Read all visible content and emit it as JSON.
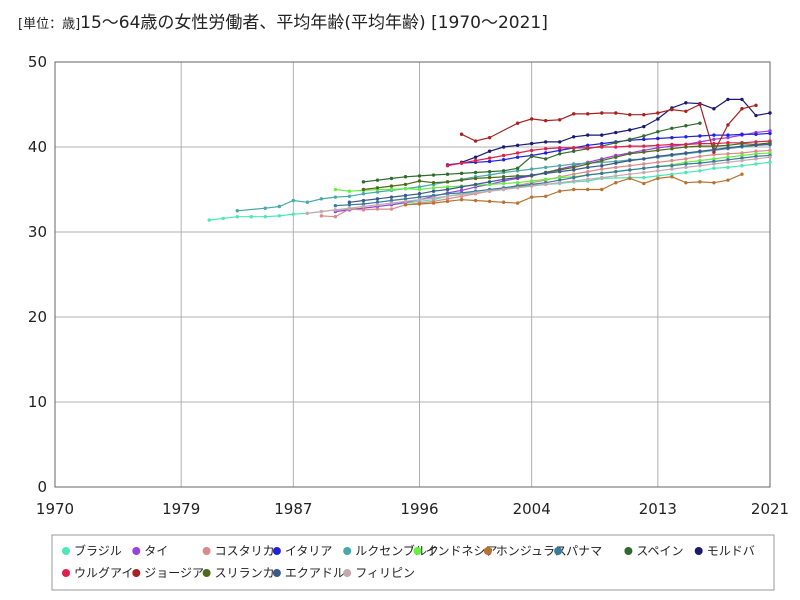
{
  "chart_data": {
    "type": "line",
    "title": "15〜64歳の女性労働者、平均年齢(平均年齢) [1970〜2021]",
    "unit_label": "[単位：歳]",
    "xlabel": "",
    "ylabel": "",
    "xlim": [
      1970,
      2021
    ],
    "ylim": [
      0,
      50
    ],
    "x_ticks": [
      1970,
      1979,
      1987,
      1996,
      2004,
      2013,
      2021
    ],
    "y_ticks": [
      0,
      10,
      20,
      30,
      40,
      50
    ],
    "grid": true,
    "legend_position": "bottom",
    "series": [
      {
        "name": "ブラジル",
        "color": "#4de8b4",
        "x": [
          1981,
          1982,
          1983,
          1984,
          1985,
          1986,
          1987,
          1988,
          1989,
          1990,
          1992,
          1993,
          1995,
          1996,
          1997,
          1998,
          1999,
          2001,
          2002,
          2003,
          2004,
          2005,
          2006,
          2007,
          2008,
          2009,
          2011,
          2012,
          2013,
          2014,
          2015,
          2016,
          2017,
          2018,
          2019,
          2020,
          2021
        ],
        "y": [
          31.4,
          31.6,
          31.8,
          31.8,
          31.8,
          31.9,
          32.1,
          32.2,
          32.4,
          32.6,
          32.8,
          33.0,
          33.4,
          33.6,
          33.8,
          34.2,
          34.5,
          34.8,
          35.0,
          35.3,
          35.5,
          35.6,
          35.7,
          35.9,
          36.0,
          36.3,
          36.4,
          36.4,
          36.6,
          36.8,
          37.0,
          37.2,
          37.5,
          37.6,
          37.8,
          38.0,
          38.2
        ]
      },
      {
        "name": "タイ",
        "color": "#9b40e0",
        "x": [
          1990,
          1991,
          1992,
          1993,
          1994,
          1995,
          1996,
          1997,
          1998,
          1999,
          2000,
          2001,
          2002,
          2003,
          2004,
          2005,
          2006,
          2007,
          2008,
          2009,
          2010,
          2011,
          2012,
          2013,
          2014,
          2015,
          2016,
          2017,
          2018,
          2019,
          2020,
          2021
        ],
        "y": [
          32.4,
          32.6,
          32.8,
          33.0,
          33.2,
          33.5,
          33.8,
          34.2,
          34.6,
          34.9,
          35.3,
          35.6,
          36.0,
          36.3,
          36.6,
          37.0,
          37.4,
          37.8,
          38.2,
          38.6,
          39.0,
          39.3,
          39.6,
          39.9,
          40.1,
          40.3,
          40.6,
          40.9,
          41.1,
          41.4,
          41.7,
          41.9
        ]
      },
      {
        "name": "コスタリカ",
        "color": "#d98a8a",
        "x": [
          1989,
          1990,
          1991,
          1992,
          1993,
          1994,
          1995,
          1996,
          1997,
          1998,
          1999,
          2000,
          2001,
          2002,
          2003,
          2004,
          2005,
          2006,
          2007,
          2008,
          2009,
          2010,
          2011,
          2012,
          2013,
          2014,
          2015,
          2016,
          2017,
          2018,
          2019,
          2020,
          2021
        ],
        "y": [
          31.9,
          31.8,
          32.7,
          32.6,
          32.7,
          32.7,
          33.2,
          33.4,
          33.6,
          33.9,
          34.2,
          34.5,
          34.8,
          35.1,
          35.5,
          35.8,
          36.1,
          36.5,
          36.8,
          37.1,
          37.4,
          37.6,
          37.8,
          38.0,
          38.2,
          38.4,
          38.6,
          38.9,
          39.1,
          39.2,
          39.3,
          39.5,
          39.6
        ]
      },
      {
        "name": "イタリア",
        "color": "#2020e0",
        "x": [
          1998,
          1999,
          2000,
          2001,
          2002,
          2003,
          2004,
          2005,
          2006,
          2007,
          2008,
          2009,
          2010,
          2011,
          2012,
          2013,
          2014,
          2015,
          2016,
          2017,
          2018,
          2019,
          2020,
          2021
        ],
        "y": [
          37.9,
          38.1,
          38.2,
          38.3,
          38.5,
          38.8,
          39.0,
          39.3,
          39.6,
          39.9,
          40.2,
          40.4,
          40.6,
          40.8,
          40.9,
          41.0,
          41.1,
          41.2,
          41.3,
          41.4,
          41.4,
          41.5,
          41.5,
          41.6
        ]
      },
      {
        "name": "ルクセンブルク",
        "color": "#4aa8a8",
        "x": [
          1983,
          1985,
          1986,
          1987,
          1988,
          1989,
          1990,
          1991,
          1992,
          1993,
          1994,
          1995,
          1996,
          1997,
          1998,
          1999,
          2000,
          2001,
          2002,
          2003,
          2004,
          2005,
          2006,
          2007,
          2008,
          2009,
          2010,
          2011,
          2012,
          2013,
          2014,
          2015,
          2016,
          2017,
          2018,
          2019,
          2020,
          2021
        ],
        "y": [
          32.5,
          32.8,
          33.0,
          33.7,
          33.5,
          33.9,
          34.1,
          34.2,
          34.5,
          34.7,
          34.9,
          35.1,
          35.3,
          35.6,
          35.9,
          36.2,
          36.5,
          36.7,
          37.0,
          37.2,
          37.4,
          37.6,
          37.8,
          38.0,
          38.1,
          38.2,
          38.3,
          38.5,
          38.6,
          38.8,
          39.0,
          39.2,
          39.4,
          39.6,
          39.8,
          40.0,
          40.2,
          40.4
        ]
      },
      {
        "name": "インドネシア",
        "color": "#66ee44",
        "x": [
          1990,
          1991,
          1992,
          1993,
          1994,
          1995,
          1996,
          1997,
          1998,
          1999,
          2000,
          2001,
          2002,
          2003,
          2004,
          2005,
          2006,
          2007,
          2008,
          2009,
          2010,
          2011,
          2012,
          2013,
          2014,
          2015,
          2016,
          2017,
          2018,
          2019,
          2020,
          2021
        ],
        "y": [
          35.0,
          34.8,
          34.9,
          35.0,
          35.0,
          35.1,
          35.0,
          35.2,
          35.3,
          35.4,
          35.5,
          35.6,
          35.7,
          35.8,
          36.0,
          36.2,
          36.4,
          36.5,
          36.7,
          36.9,
          37.1,
          37.3,
          37.5,
          37.7,
          37.9,
          38.2,
          38.4,
          38.6,
          38.8,
          39.0,
          39.2,
          39.3
        ]
      },
      {
        "name": "ホンジュラス",
        "color": "#b87333",
        "x": [
          1995,
          1996,
          1997,
          1998,
          1999,
          2000,
          2001,
          2002,
          2003,
          2004,
          2005,
          2006,
          2007,
          2008,
          2009,
          2010,
          2011,
          2012,
          2013,
          2014,
          2015,
          2016,
          2017,
          2018,
          2019
        ],
        "y": [
          33.2,
          33.3,
          33.4,
          33.6,
          33.8,
          33.7,
          33.6,
          33.5,
          33.4,
          34.1,
          34.2,
          34.8,
          35.0,
          35.0,
          35.0,
          35.8,
          36.3,
          35.7,
          36.3,
          36.5,
          35.8,
          35.9,
          35.8,
          36.1,
          36.8
        ]
      },
      {
        "name": "パナマ",
        "color": "#3a7a9a",
        "x": [
          1990,
          1991,
          1992,
          1993,
          1994,
          1995,
          1996,
          1997,
          1998,
          1999,
          2000,
          2001,
          2002,
          2003,
          2004,
          2005,
          2006,
          2007,
          2008,
          2009,
          2010,
          2011,
          2012,
          2013,
          2014,
          2015,
          2016,
          2017,
          2018,
          2019,
          2020,
          2021
        ],
        "y": [
          33.1,
          33.2,
          33.3,
          33.5,
          33.7,
          33.9,
          34.1,
          34.3,
          34.5,
          34.6,
          34.8,
          35.0,
          35.2,
          35.4,
          35.6,
          35.8,
          36.1,
          36.4,
          36.7,
          36.9,
          37.1,
          37.3,
          37.5,
          37.7,
          37.8,
          38.0,
          38.1,
          38.3,
          38.5,
          38.7,
          38.9,
          39.0
        ]
      },
      {
        "name": "スペイン",
        "color": "#2f6b2f",
        "x": [
          1992,
          1993,
          1994,
          1995,
          1996,
          1997,
          1998,
          1999,
          2000,
          2001,
          2002,
          2003,
          2004,
          2005,
          2006,
          2007,
          2008,
          2009,
          2010,
          2011,
          2012,
          2013,
          2014,
          2015,
          2016
        ],
        "y": [
          35.9,
          36.1,
          36.3,
          36.5,
          36.6,
          36.7,
          36.8,
          36.9,
          37.0,
          37.1,
          37.2,
          37.5,
          38.9,
          38.6,
          39.2,
          39.5,
          39.8,
          40.1,
          40.5,
          40.9,
          41.3,
          41.8,
          42.2,
          42.5,
          42.8
        ]
      },
      {
        "name": "モルドバ",
        "color": "#1a1a70",
        "x": [
          1999,
          2000,
          2001,
          2002,
          2003,
          2004,
          2005,
          2006,
          2007,
          2008,
          2009,
          2010,
          2011,
          2012,
          2013,
          2014,
          2015,
          2016,
          2017,
          2018,
          2019,
          2020,
          2021
        ],
        "y": [
          38.2,
          38.8,
          39.5,
          40.0,
          40.2,
          40.4,
          40.6,
          40.6,
          41.2,
          41.4,
          41.4,
          41.7,
          42.0,
          42.4,
          43.3,
          44.6,
          45.2,
          45.1,
          44.5,
          45.6,
          45.6,
          43.7,
          44.0
        ]
      },
      {
        "name": "ウルグアイ",
        "color": "#e0204a",
        "x": [
          1998,
          1999,
          2000,
          2001,
          2002,
          2003,
          2004,
          2005,
          2006,
          2007,
          2008,
          2009,
          2010,
          2011,
          2012,
          2013,
          2014,
          2015,
          2016,
          2017,
          2018,
          2019,
          2020,
          2021
        ],
        "y": [
          37.8,
          38.1,
          38.4,
          38.7,
          39.0,
          39.3,
          39.6,
          39.8,
          39.9,
          39.9,
          39.9,
          40.0,
          40.0,
          40.1,
          40.1,
          40.2,
          40.3,
          40.3,
          40.4,
          40.4,
          40.5,
          40.5,
          40.6,
          40.7
        ]
      },
      {
        "name": "ジョージア",
        "color": "#a82020",
        "x": [
          1999,
          2000,
          2001,
          2003,
          2004,
          2005,
          2006,
          2007,
          2008,
          2009,
          2010,
          2011,
          2012,
          2013,
          2014,
          2015,
          2016,
          2017,
          2018,
          2019,
          2020
        ],
        "y": [
          41.5,
          40.7,
          41.1,
          42.8,
          43.3,
          43.1,
          43.2,
          43.9,
          43.9,
          44.0,
          44.0,
          43.8,
          43.8,
          44.0,
          44.4,
          44.2,
          45.0,
          39.4,
          42.6,
          44.5,
          44.9
        ]
      },
      {
        "name": "スリランカ",
        "color": "#4f6a1a",
        "x": [
          1992,
          1993,
          1994,
          1995,
          1996,
          1997,
          1998,
          1999,
          2000,
          2001,
          2002,
          2003,
          2004,
          2005,
          2006,
          2007,
          2008,
          2009,
          2010,
          2011,
          2012,
          2013,
          2014,
          2015,
          2016,
          2017,
          2018,
          2019,
          2020,
          2021
        ],
        "y": [
          35.0,
          35.2,
          35.4,
          35.6,
          36.0,
          35.8,
          35.9,
          36.1,
          36.3,
          36.4,
          36.5,
          36.6,
          36.6,
          37.0,
          37.3,
          37.6,
          38.0,
          38.4,
          38.8,
          39.2,
          39.4,
          39.6,
          39.8,
          40.0,
          40.1,
          40.1,
          40.2,
          40.4,
          40.3,
          40.5
        ]
      },
      {
        "name": "エクアドル",
        "color": "#3a5a8a",
        "x": [
          1991,
          1992,
          1993,
          1994,
          1995,
          1996,
          1997,
          1998,
          1999,
          2000,
          2001,
          2002,
          2003,
          2004,
          2005,
          2006,
          2007,
          2008,
          2009,
          2010,
          2011,
          2012,
          2013,
          2014,
          2015,
          2016,
          2017,
          2018,
          2019,
          2020,
          2021
        ],
        "y": [
          33.5,
          33.7,
          33.9,
          34.1,
          34.3,
          34.5,
          34.8,
          35.0,
          35.3,
          35.6,
          35.9,
          36.2,
          36.4,
          36.7,
          36.9,
          37.1,
          37.3,
          37.6,
          37.8,
          38.1,
          38.4,
          38.6,
          38.9,
          39.1,
          39.3,
          39.5,
          39.7,
          39.9,
          40.1,
          40.2,
          40.3
        ]
      },
      {
        "name": "フィリピン",
        "color": "#c8a8b0",
        "x": [
          1988,
          1989,
          1990,
          1991,
          1992,
          1993,
          1994,
          1995,
          1996,
          1997,
          1998,
          1999,
          2000,
          2001,
          2002,
          2003,
          2004,
          2005,
          2006,
          2007,
          2008,
          2009,
          2010,
          2011,
          2012,
          2013,
          2014,
          2015,
          2016,
          2017,
          2018,
          2019,
          2020,
          2021
        ],
        "y": [
          32.2,
          32.4,
          32.6,
          32.8,
          33.0,
          33.2,
          33.4,
          33.6,
          33.8,
          34.0,
          34.2,
          34.4,
          34.6,
          34.8,
          35.0,
          35.2,
          35.4,
          35.6,
          35.8,
          36.0,
          36.2,
          36.4,
          36.6,
          36.8,
          37.0,
          37.2,
          37.4,
          37.6,
          37.8,
          38.0,
          38.2,
          38.4,
          38.6,
          38.8
        ]
      }
    ]
  }
}
